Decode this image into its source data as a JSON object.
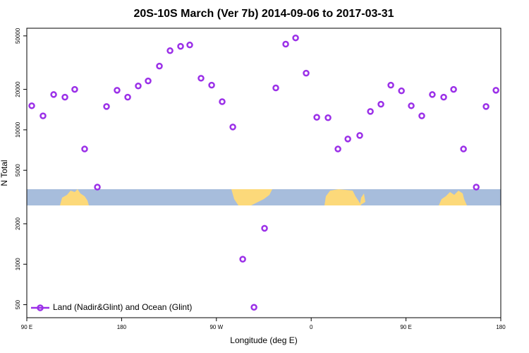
{
  "chart_data": {
    "type": "scatter",
    "title": "20S-10S March (Ver 7b)   2014-09-06 to 2017-03-31",
    "xlabel": "Longitude (deg E)",
    "ylabel": "N Total",
    "ylog": true,
    "legend": "bottomleft",
    "xlim": [
      90,
      540
    ],
    "ylim": [
      400,
      57000
    ],
    "xticks": [
      {
        "value": 90,
        "label": "90 E"
      },
      {
        "value": 180,
        "label": "180"
      },
      {
        "value": 270,
        "label": "90 W"
      },
      {
        "value": 360,
        "label": "0"
      },
      {
        "value": 450,
        "label": "90 E"
      },
      {
        "value": 540,
        "label": "180"
      }
    ],
    "yticks": [
      500,
      1000,
      2000,
      5000,
      10000,
      20000,
      50000
    ],
    "series": [
      {
        "name": "Land (Nadir&Glint) and Ocean (Glint)",
        "color": "#9b30e8",
        "x": [
          94.7,
          105.4,
          115.5,
          126.2,
          135.5,
          144.9,
          157,
          165.7,
          175.7,
          185.8,
          195.8,
          205.2,
          215.9,
          226,
          236,
          244.7,
          255.4,
          265.5,
          275.5,
          285.6,
          295,
          305.7,
          315.7,
          326.4,
          335.8,
          345.2,
          355.2,
          365.3,
          376,
          385.4,
          394.8,
          406.1,
          416.2,
          426.2,
          435.6,
          445.7,
          455,
          465,
          475,
          485.8,
          495.2,
          504.6,
          516.7,
          526,
          535.4
        ],
        "values": [
          15100,
          12700,
          18300,
          17500,
          20000,
          7200,
          3750,
          14900,
          19700,
          17500,
          21200,
          23100,
          29800,
          38800,
          41800,
          42800,
          24200,
          21500,
          16200,
          10500,
          1090,
          478,
          1850,
          20500,
          43400,
          48300,
          26400,
          12400,
          12300,
          7200,
          8550,
          9080,
          13700,
          15500,
          21500,
          19500,
          15100,
          12700,
          18300,
          17500,
          20000,
          7200,
          3750,
          14900,
          19700
        ]
      }
    ]
  }
}
